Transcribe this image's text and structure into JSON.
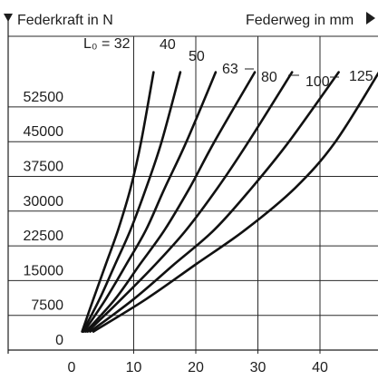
{
  "chart_data": {
    "type": "line",
    "title": "",
    "ylabel": "Federkraft in N",
    "xlabel": "Federweg in mm",
    "y_arrow_icon": "triangle-down-icon",
    "x_arrow_icon": "triangle-right-icon",
    "xlim": [
      0,
      50
    ],
    "ylim": [
      0,
      60000
    ],
    "grid": true,
    "x_ticks": [
      "0",
      "10",
      "20",
      "30",
      "40"
    ],
    "y_ticks": [
      "0",
      "7500",
      "15000",
      "22500",
      "30000",
      "37500",
      "45000",
      "52500"
    ],
    "series": [
      {
        "name": "L₀ = 32",
        "points": [
          [
            1.7,
            4000
          ],
          [
            3.5,
            11000
          ],
          [
            5.5,
            18500
          ],
          [
            7.5,
            26000
          ],
          [
            9.5,
            35000
          ],
          [
            11.2,
            45000
          ],
          [
            13.2,
            60000
          ]
        ]
      },
      {
        "name": "40",
        "points": [
          [
            1.8,
            4000
          ],
          [
            4.5,
            11000
          ],
          [
            7.0,
            18500
          ],
          [
            9.5,
            26000
          ],
          [
            12.0,
            35000
          ],
          [
            14.5,
            45000
          ],
          [
            17.5,
            60000
          ]
        ]
      },
      {
        "name": "50",
        "points": [
          [
            2.0,
            4000
          ],
          [
            5.5,
            11000
          ],
          [
            8.8,
            18500
          ],
          [
            12.0,
            26000
          ],
          [
            15.0,
            35000
          ],
          [
            18.5,
            45000
          ],
          [
            23.2,
            60000
          ]
        ]
      },
      {
        "name": "63",
        "points": [
          [
            2.3,
            4000
          ],
          [
            7.0,
            11000
          ],
          [
            11.0,
            18500
          ],
          [
            15.0,
            26000
          ],
          [
            19.0,
            35000
          ],
          [
            23.0,
            45000
          ],
          [
            29.5,
            60000
          ]
        ]
      },
      {
        "name": "80",
        "points": [
          [
            2.6,
            4000
          ],
          [
            8.0,
            11000
          ],
          [
            13.5,
            18500
          ],
          [
            18.5,
            26000
          ],
          [
            23.5,
            35000
          ],
          [
            28.5,
            45000
          ],
          [
            35.5,
            60000
          ]
        ]
      },
      {
        "name": "100",
        "points": [
          [
            3.0,
            4000
          ],
          [
            10.0,
            11000
          ],
          [
            16.5,
            18500
          ],
          [
            23.0,
            26000
          ],
          [
            29.0,
            35000
          ],
          [
            35.0,
            45000
          ],
          [
            43.0,
            60000
          ]
        ]
      },
      {
        "name": "125",
        "points": [
          [
            3.5,
            4000
          ],
          [
            12.0,
            11000
          ],
          [
            20.0,
            18500
          ],
          [
            28.0,
            26000
          ],
          [
            36.0,
            35000
          ],
          [
            42.5,
            45000
          ],
          [
            49.5,
            60000
          ]
        ]
      }
    ]
  }
}
